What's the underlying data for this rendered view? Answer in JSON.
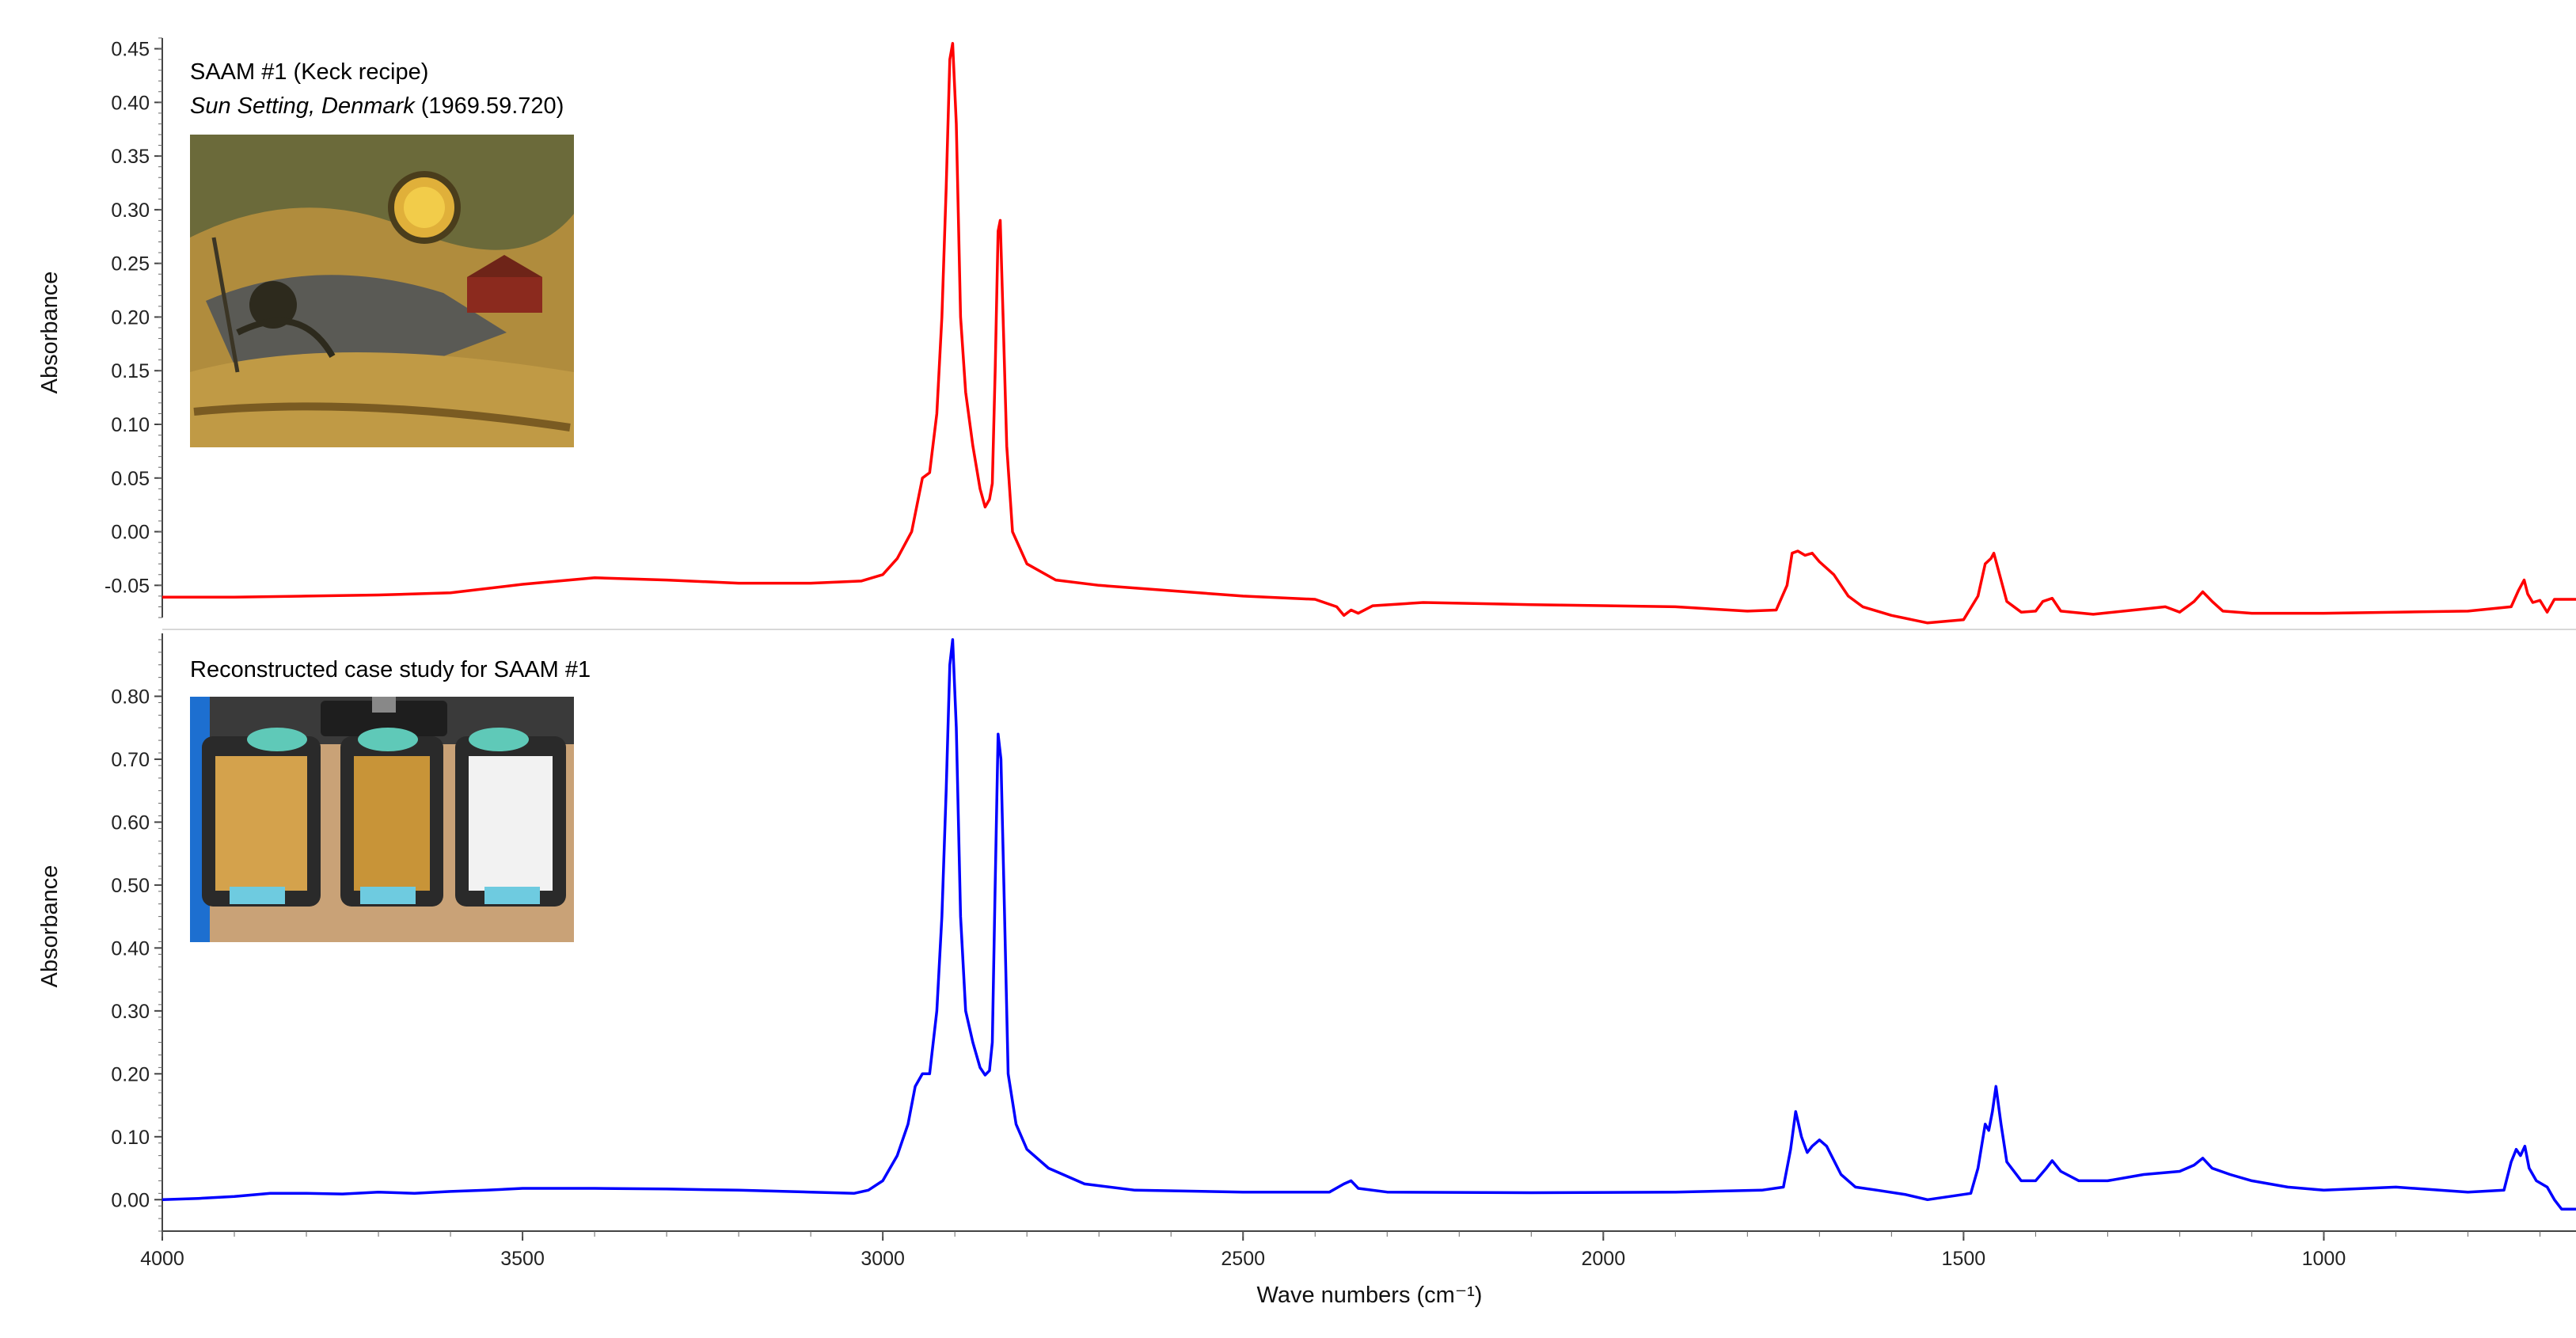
{
  "chart_data": {
    "type": "line",
    "xlabel": "Wave numbers (cm⁻¹)",
    "x_ticks": [
      4000,
      3500,
      3000,
      2500,
      2000,
      1500,
      1000
    ],
    "xlim": [
      4000,
      650
    ],
    "x_reversed": true,
    "panels": [
      {
        "title": "SAAM #1 (Keck recipe)",
        "subtitle_italic": "Sun Setting, Denmark",
        "subtitle_plain": " (1969.59.720)",
        "inset": "painting-thumbnail",
        "ylabel": "Absorbance",
        "ylim": [
          -0.08,
          0.46
        ],
        "y_ticks": [
          "0.45",
          "0.40",
          "0.35",
          "0.30",
          "0.25",
          "0.20",
          "0.15",
          "0.10",
          "0.05",
          "0.00",
          "-0.05"
        ],
        "series": [
          {
            "color": "#ff0000",
            "points": [
              [
                4000,
                -0.061
              ],
              [
                3900,
                -0.061
              ],
              [
                3800,
                -0.06
              ],
              [
                3700,
                -0.059
              ],
              [
                3600,
                -0.057
              ],
              [
                3500,
                -0.049
              ],
              [
                3400,
                -0.043
              ],
              [
                3300,
                -0.045
              ],
              [
                3200,
                -0.048
              ],
              [
                3100,
                -0.048
              ],
              [
                3030,
                -0.046
              ],
              [
                3000,
                -0.04
              ],
              [
                2980,
                -0.025
              ],
              [
                2960,
                0.0
              ],
              [
                2945,
                0.05
              ],
              [
                2935,
                0.055
              ],
              [
                2925,
                0.11
              ],
              [
                2918,
                0.2
              ],
              [
                2912,
                0.32
              ],
              [
                2907,
                0.44
              ],
              [
                2903,
                0.455
              ],
              [
                2898,
                0.38
              ],
              [
                2892,
                0.2
              ],
              [
                2885,
                0.13
              ],
              [
                2875,
                0.08
              ],
              [
                2865,
                0.04
              ],
              [
                2858,
                0.023
              ],
              [
                2852,
                0.03
              ],
              [
                2848,
                0.045
              ],
              [
                2844,
                0.15
              ],
              [
                2840,
                0.28
              ],
              [
                2837,
                0.29
              ],
              [
                2833,
                0.2
              ],
              [
                2828,
                0.08
              ],
              [
                2820,
                0.0
              ],
              [
                2800,
                -0.03
              ],
              [
                2760,
                -0.045
              ],
              [
                2700,
                -0.05
              ],
              [
                2600,
                -0.055
              ],
              [
                2500,
                -0.06
              ],
              [
                2400,
                -0.063
              ],
              [
                2370,
                -0.07
              ],
              [
                2360,
                -0.078
              ],
              [
                2350,
                -0.073
              ],
              [
                2340,
                -0.076
              ],
              [
                2320,
                -0.069
              ],
              [
                2250,
                -0.066
              ],
              [
                2100,
                -0.068
              ],
              [
                1900,
                -0.07
              ],
              [
                1800,
                -0.074
              ],
              [
                1760,
                -0.073
              ],
              [
                1745,
                -0.05
              ],
              [
                1738,
                -0.02
              ],
              [
                1730,
                -0.018
              ],
              [
                1720,
                -0.022
              ],
              [
                1710,
                -0.02
              ],
              [
                1700,
                -0.028
              ],
              [
                1680,
                -0.04
              ],
              [
                1660,
                -0.06
              ],
              [
                1640,
                -0.07
              ],
              [
                1600,
                -0.078
              ],
              [
                1550,
                -0.085
              ],
              [
                1500,
                -0.082
              ],
              [
                1480,
                -0.06
              ],
              [
                1470,
                -0.03
              ],
              [
                1462,
                -0.025
              ],
              [
                1458,
                -0.02
              ],
              [
                1450,
                -0.04
              ],
              [
                1440,
                -0.065
              ],
              [
                1420,
                -0.075
              ],
              [
                1400,
                -0.074
              ],
              [
                1390,
                -0.065
              ],
              [
                1377,
                -0.062
              ],
              [
                1365,
                -0.074
              ],
              [
                1320,
                -0.077
              ],
              [
                1250,
                -0.072
              ],
              [
                1220,
                -0.07
              ],
              [
                1200,
                -0.075
              ],
              [
                1180,
                -0.065
              ],
              [
                1168,
                -0.056
              ],
              [
                1155,
                -0.065
              ],
              [
                1140,
                -0.074
              ],
              [
                1100,
                -0.076
              ],
              [
                1000,
                -0.076
              ],
              [
                900,
                -0.075
              ],
              [
                800,
                -0.074
              ],
              [
                740,
                -0.07
              ],
              [
                730,
                -0.055
              ],
              [
                722,
                -0.045
              ],
              [
                717,
                -0.058
              ],
              [
                710,
                -0.066
              ],
              [
                700,
                -0.064
              ],
              [
                690,
                -0.075
              ],
              [
                680,
                -0.063
              ],
              [
                650,
                -0.063
              ]
            ]
          }
        ]
      },
      {
        "title": "Reconstructed case study for SAAM #1",
        "inset": "sample-trays-photo",
        "ylabel": "Absorbance",
        "ylim": [
          -0.05,
          0.9
        ],
        "y_ticks": [
          "0.80",
          "0.70",
          "0.60",
          "0.50",
          "0.40",
          "0.30",
          "0.20",
          "0.10",
          "0.00"
        ],
        "series": [
          {
            "color": "#0000ff",
            "points": [
              [
                4000,
                0.0
              ],
              [
                3950,
                0.002
              ],
              [
                3900,
                0.005
              ],
              [
                3850,
                0.01
              ],
              [
                3800,
                0.01
              ],
              [
                3750,
                0.009
              ],
              [
                3700,
                0.012
              ],
              [
                3650,
                0.01
              ],
              [
                3600,
                0.013
              ],
              [
                3550,
                0.015
              ],
              [
                3500,
                0.018
              ],
              [
                3450,
                0.018
              ],
              [
                3400,
                0.018
              ],
              [
                3300,
                0.017
              ],
              [
                3200,
                0.015
              ],
              [
                3100,
                0.012
              ],
              [
                3040,
                0.01
              ],
              [
                3020,
                0.015
              ],
              [
                3000,
                0.03
              ],
              [
                2980,
                0.07
              ],
              [
                2965,
                0.12
              ],
              [
                2955,
                0.18
              ],
              [
                2945,
                0.2
              ],
              [
                2935,
                0.2
              ],
              [
                2925,
                0.3
              ],
              [
                2918,
                0.45
              ],
              [
                2912,
                0.65
              ],
              [
                2907,
                0.85
              ],
              [
                2903,
                0.89
              ],
              [
                2898,
                0.75
              ],
              [
                2892,
                0.45
              ],
              [
                2885,
                0.3
              ],
              [
                2875,
                0.25
              ],
              [
                2865,
                0.21
              ],
              [
                2858,
                0.198
              ],
              [
                2852,
                0.205
              ],
              [
                2848,
                0.25
              ],
              [
                2844,
                0.5
              ],
              [
                2840,
                0.74
              ],
              [
                2836,
                0.7
              ],
              [
                2832,
                0.5
              ],
              [
                2826,
                0.2
              ],
              [
                2815,
                0.12
              ],
              [
                2800,
                0.08
              ],
              [
                2770,
                0.05
              ],
              [
                2720,
                0.025
              ],
              [
                2650,
                0.015
              ],
              [
                2500,
                0.012
              ],
              [
                2380,
                0.012
              ],
              [
                2360,
                0.025
              ],
              [
                2350,
                0.03
              ],
              [
                2340,
                0.018
              ],
              [
                2300,
                0.012
              ],
              [
                2100,
                0.011
              ],
              [
                1900,
                0.012
              ],
              [
                1780,
                0.015
              ],
              [
                1750,
                0.02
              ],
              [
                1740,
                0.08
              ],
              [
                1733,
                0.14
              ],
              [
                1725,
                0.1
              ],
              [
                1717,
                0.075
              ],
              [
                1710,
                0.085
              ],
              [
                1700,
                0.095
              ],
              [
                1690,
                0.085
              ],
              [
                1670,
                0.04
              ],
              [
                1650,
                0.02
              ],
              [
                1620,
                0.015
              ],
              [
                1580,
                0.008
              ],
              [
                1550,
                0.0
              ],
              [
                1520,
                0.005
              ],
              [
                1490,
                0.01
              ],
              [
                1480,
                0.05
              ],
              [
                1470,
                0.12
              ],
              [
                1465,
                0.11
              ],
              [
                1460,
                0.14
              ],
              [
                1455,
                0.18
              ],
              [
                1448,
                0.12
              ],
              [
                1440,
                0.06
              ],
              [
                1420,
                0.03
              ],
              [
                1400,
                0.03
              ],
              [
                1385,
                0.05
              ],
              [
                1377,
                0.062
              ],
              [
                1365,
                0.045
              ],
              [
                1340,
                0.03
              ],
              [
                1300,
                0.03
              ],
              [
                1250,
                0.04
              ],
              [
                1200,
                0.045
              ],
              [
                1180,
                0.055
              ],
              [
                1168,
                0.066
              ],
              [
                1155,
                0.05
              ],
              [
                1130,
                0.04
              ],
              [
                1100,
                0.03
              ],
              [
                1050,
                0.02
              ],
              [
                1000,
                0.015
              ],
              [
                900,
                0.02
              ],
              [
                800,
                0.012
              ],
              [
                750,
                0.015
              ],
              [
                740,
                0.06
              ],
              [
                733,
                0.08
              ],
              [
                727,
                0.07
              ],
              [
                721,
                0.085
              ],
              [
                715,
                0.05
              ],
              [
                705,
                0.03
              ],
              [
                690,
                0.02
              ],
              [
                680,
                0.0
              ],
              [
                670,
                -0.015
              ],
              [
                650,
                -0.015
              ]
            ]
          }
        ]
      }
    ]
  }
}
